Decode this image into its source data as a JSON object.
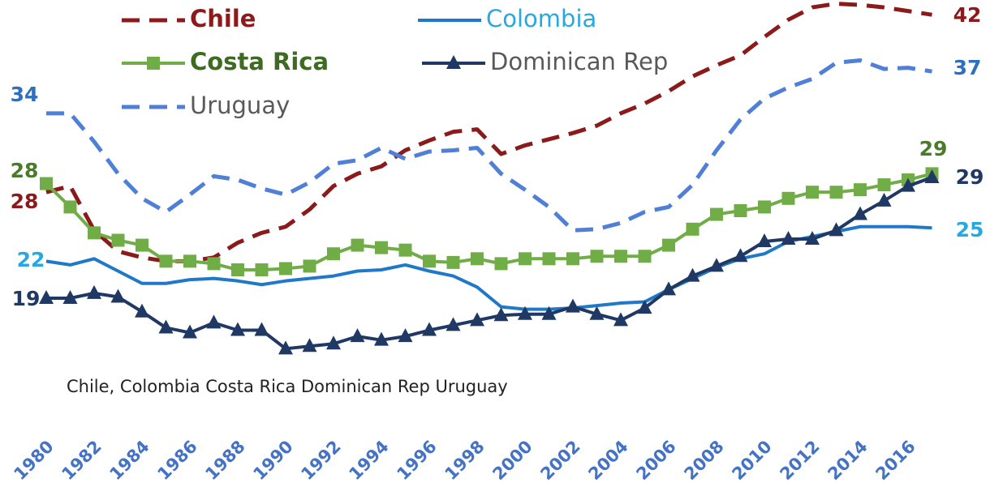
{
  "chart_data": {
    "type": "line",
    "annotation": "Chile, Colombia Costa Rica Dominican Rep Uruguay",
    "categories": [
      "1980",
      null,
      "1982",
      null,
      "1984",
      null,
      "1986",
      null,
      "1988",
      null,
      "1990",
      null,
      "1992",
      null,
      "1994",
      null,
      "1996",
      null,
      "1998",
      null,
      "2000",
      null,
      "2002",
      null,
      "2004",
      null,
      "2006",
      null,
      "2008",
      null,
      "2010",
      null,
      "2012",
      null,
      "2014",
      null,
      "2016",
      null
    ],
    "ylim": [
      14,
      43
    ],
    "series": [
      {
        "name": "Chile",
        "color": "#8b1a1a",
        "dash": true,
        "marker": null,
        "values": [
          27.6,
          28.1,
          24.5,
          22.8,
          22.3,
          22,
          22,
          22.3,
          23.5,
          24.3,
          24.8,
          26.2,
          28.1,
          29.1,
          29.7,
          31,
          31.8,
          32.5,
          32.7,
          30.7,
          31.4,
          31.9,
          32.4,
          33,
          34,
          34.8,
          35.8,
          37,
          37.9,
          38.7,
          40.2,
          41.6,
          42.6,
          42.9,
          42.8,
          42.6,
          42.3,
          42
        ],
        "value_labels": [
          "28",
          null,
          null,
          null,
          null,
          null,
          null,
          null,
          null,
          null,
          null,
          null,
          null,
          null,
          null,
          null,
          null,
          null,
          null,
          null,
          null,
          null,
          null,
          null,
          null,
          null,
          null,
          null,
          null,
          null,
          null,
          null,
          null,
          null,
          null,
          null,
          null,
          "42"
        ]
      },
      {
        "name": "Colombia",
        "color": "#1f78c8",
        "dash": false,
        "marker": null,
        "values": [
          22,
          21.7,
          22.2,
          21.2,
          20.2,
          20.2,
          20.5,
          20.6,
          20.4,
          20.1,
          20.4,
          20.6,
          20.8,
          21.2,
          21.3,
          21.7,
          21.2,
          20.8,
          19.9,
          18.3,
          18.1,
          18.1,
          18.2,
          18.4,
          18.6,
          18.7,
          19.7,
          20.6,
          21.5,
          22.2,
          22.6,
          23.6,
          24,
          24.4,
          24.8,
          24.8,
          24.8,
          24.7
        ],
        "value_labels": [
          "22",
          null,
          null,
          null,
          null,
          null,
          null,
          null,
          null,
          null,
          null,
          null,
          null,
          null,
          null,
          null,
          null,
          null,
          null,
          null,
          null,
          null,
          null,
          null,
          null,
          null,
          null,
          null,
          null,
          null,
          null,
          null,
          null,
          null,
          null,
          null,
          null,
          "25"
        ]
      },
      {
        "name": "Costa Rica",
        "color": "#70ad47",
        "dash": false,
        "marker": "square",
        "values": [
          28.3,
          26.4,
          24.3,
          23.7,
          23.3,
          22,
          22,
          21.8,
          21.3,
          21.3,
          21.4,
          21.6,
          22.6,
          23.3,
          23.1,
          22.9,
          22,
          21.9,
          22.2,
          21.8,
          22.2,
          22.2,
          22.2,
          22.4,
          22.4,
          22.4,
          23.3,
          24.6,
          25.8,
          26.1,
          26.4,
          27.1,
          27.6,
          27.6,
          27.8,
          28.2,
          28.6,
          29.1
        ],
        "value_labels": [
          "28",
          null,
          null,
          null,
          null,
          null,
          null,
          null,
          null,
          null,
          null,
          null,
          null,
          null,
          null,
          null,
          null,
          null,
          null,
          null,
          null,
          null,
          null,
          null,
          null,
          null,
          null,
          null,
          null,
          null,
          null,
          null,
          null,
          null,
          null,
          null,
          null,
          "29"
        ]
      },
      {
        "name": "Dominican Rep",
        "color": "#1f3864",
        "dash": false,
        "marker": "triangle",
        "values": [
          19,
          19,
          19.4,
          19.1,
          17.9,
          16.6,
          16.2,
          17,
          16.4,
          16.4,
          14.9,
          15.1,
          15.3,
          15.9,
          15.6,
          15.9,
          16.4,
          16.8,
          17.2,
          17.6,
          17.7,
          17.7,
          18.3,
          17.7,
          17.2,
          18.2,
          19.7,
          20.8,
          21.6,
          22.4,
          23.6,
          23.8,
          23.8,
          24.5,
          25.8,
          26.9,
          28.1,
          28.8
        ],
        "value_labels": [
          "19",
          null,
          null,
          null,
          null,
          null,
          null,
          null,
          null,
          null,
          null,
          null,
          null,
          null,
          null,
          null,
          null,
          null,
          null,
          null,
          null,
          null,
          null,
          null,
          null,
          null,
          null,
          null,
          null,
          null,
          null,
          null,
          null,
          null,
          null,
          null,
          null,
          "29"
        ]
      },
      {
        "name": "Uruguay",
        "color": "#4f7fd6",
        "dash": true,
        "marker": null,
        "values": [
          34,
          34,
          31.7,
          29.1,
          27.1,
          26,
          27.4,
          28.9,
          28.6,
          27.9,
          27.4,
          28.4,
          29.9,
          30.2,
          31.2,
          30.3,
          30.9,
          31,
          31.2,
          29.1,
          27.8,
          26.4,
          24.5,
          24.6,
          25.1,
          26,
          26.4,
          28.2,
          31,
          33.5,
          35.2,
          36.1,
          36.8,
          38.1,
          38.3,
          37.6,
          37.7,
          37.4
        ],
        "value_labels": [
          "34",
          null,
          null,
          null,
          null,
          null,
          null,
          null,
          null,
          null,
          null,
          null,
          null,
          null,
          null,
          null,
          null,
          null,
          null,
          null,
          null,
          null,
          null,
          null,
          null,
          null,
          null,
          null,
          null,
          null,
          null,
          null,
          null,
          null,
          null,
          null,
          null,
          "37"
        ]
      }
    ]
  }
}
